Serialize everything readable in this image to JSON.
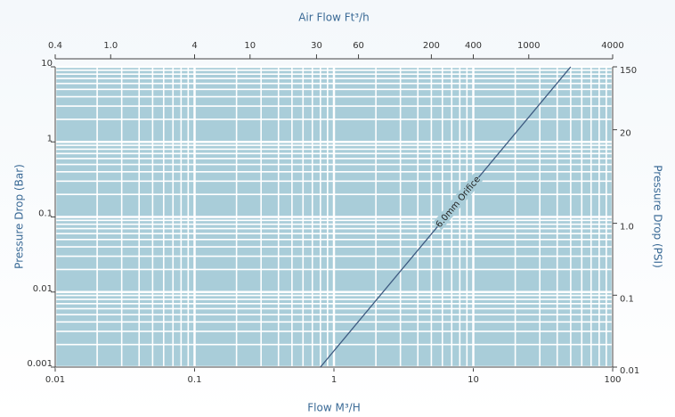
{
  "chart_data": {
    "type": "line",
    "xlabel": "Flow M³/H",
    "ylabel": "Pressure Drop (Bar)",
    "x2label": "Air Flow Ft³/h",
    "y2label": "Pressure Drop (PSI)",
    "annotation": "6.0mm Orifice",
    "xscale": "log",
    "yscale": "log",
    "grid": true,
    "background": "#a9cdd9",
    "xlim": [
      0.01,
      100
    ],
    "xticks": [
      0.01,
      0.1,
      1,
      10,
      100
    ],
    "ylim": [
      0.001,
      10
    ],
    "yticks": [
      0.001,
      0.01,
      0.1,
      1,
      10
    ],
    "x2lim": [
      0.4,
      4000
    ],
    "x2ticks": [
      0.4,
      {
        "value": 1,
        "label": "1.0"
      },
      4,
      10,
      30,
      60,
      200,
      400,
      1000,
      4000
    ],
    "y2lim": [
      0.01,
      150
    ],
    "y2ticks": [
      0.01,
      0.1,
      {
        "value": 1,
        "label": "1.0"
      },
      20,
      150
    ],
    "series": [
      {
        "name": "6.0mm Orifice",
        "color": "#3d5a80",
        "x": [
          0.8,
          50
        ],
        "values": [
          0.001,
          10
        ]
      }
    ]
  }
}
